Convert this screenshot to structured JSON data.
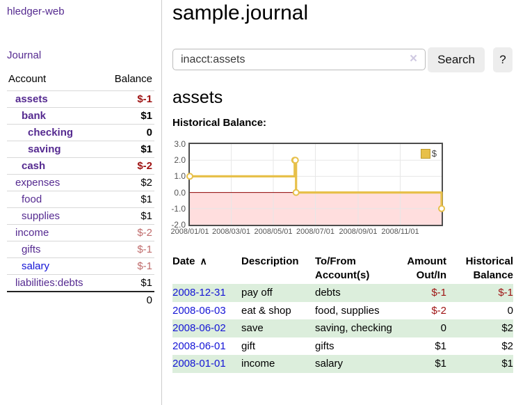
{
  "colors": {
    "link_purple": "#552a90",
    "link_blue": "#1414d6",
    "negative_strong": "#9e1212",
    "negative_faded": "#c06c6c",
    "row_green": "#dceedc",
    "chart_gold": "#e7c04a",
    "chart_gold_dark": "#bd9b2f",
    "chart_negative_fill": "#ffdede",
    "chart_zero_line": "#8b0000",
    "button_gray": "#ededed"
  },
  "app": {
    "title": "hledger-web"
  },
  "sidebar": {
    "journal_link": "Journal",
    "accounts_table": {
      "headers": {
        "account": "Account",
        "balance": "Balance"
      },
      "rows": [
        {
          "name": "assets",
          "balance": "$-1",
          "indent": 0,
          "bold": true,
          "neg": "strong",
          "link": "purple"
        },
        {
          "name": "bank",
          "balance": "$1",
          "indent": 1,
          "bold": true,
          "neg": null,
          "link": "purple"
        },
        {
          "name": "checking",
          "balance": "0",
          "indent": 2,
          "bold": true,
          "neg": null,
          "link": "purple"
        },
        {
          "name": "saving",
          "balance": "$1",
          "indent": 2,
          "bold": true,
          "neg": null,
          "link": "purple"
        },
        {
          "name": "cash",
          "balance": "$-2",
          "indent": 1,
          "bold": true,
          "neg": "strong",
          "link": "purple"
        },
        {
          "name": "expenses",
          "balance": "$2",
          "indent": 0,
          "bold": false,
          "neg": null,
          "link": "purple"
        },
        {
          "name": "food",
          "balance": "$1",
          "indent": 1,
          "bold": false,
          "neg": null,
          "link": "purple"
        },
        {
          "name": "supplies",
          "balance": "$1",
          "indent": 1,
          "bold": false,
          "neg": null,
          "link": "purple"
        },
        {
          "name": "income",
          "balance": "$-2",
          "indent": 0,
          "bold": false,
          "neg": "faded",
          "link": "purple"
        },
        {
          "name": "gifts",
          "balance": "$-1",
          "indent": 1,
          "bold": false,
          "neg": "faded",
          "link": "purple"
        },
        {
          "name": "salary",
          "balance": "$-1",
          "indent": 1,
          "bold": false,
          "neg": "faded",
          "link": "blue"
        },
        {
          "name": "liabilities:debts",
          "balance": "$1",
          "indent": 0,
          "bold": false,
          "neg": null,
          "link": "purple"
        }
      ],
      "total": "0"
    }
  },
  "main": {
    "title": "sample.journal",
    "search": {
      "value": "inacct:assets",
      "clear_icon": "×",
      "search_button": "Search",
      "help_button": "?"
    },
    "account_heading": "assets",
    "chart_title": "Historical Balance:"
  },
  "chart_data": {
    "type": "line",
    "step": true,
    "title": "Historical Balance",
    "x_min": "2008-01-01",
    "x_max": "2008-12-31",
    "ylim": [
      -2,
      3
    ],
    "y_ticks": [
      "3.0",
      "2.0",
      "1.0",
      "0.0",
      "-1.0",
      "-2.0"
    ],
    "x_ticks": [
      "2008/01/01",
      "2008/03/01",
      "2008/05/01",
      "2008/07/01",
      "2008/09/01",
      "2008/11/01"
    ],
    "grid": true,
    "negative_region": true,
    "legend": [
      {
        "label": "$",
        "position": "top-right"
      }
    ],
    "series": [
      {
        "name": "$",
        "points": [
          [
            "2008-01-01",
            1
          ],
          [
            "2008-06-01",
            2
          ],
          [
            "2008-06-02",
            2
          ],
          [
            "2008-06-03",
            0
          ],
          [
            "2008-12-31",
            -1
          ]
        ]
      }
    ]
  },
  "register": {
    "headers": {
      "date": "Date",
      "sort_caret": "∧",
      "description": "Description",
      "to_from": "To/From Account(s)",
      "amount": "Amount Out/In",
      "balance": "Historical Balance"
    },
    "rows": [
      {
        "date": "2008-12-31",
        "description": "pay off",
        "to_from": "debts",
        "amount": "$-1",
        "amount_neg": true,
        "balance": "$-1",
        "balance_neg": true
      },
      {
        "date": "2008-06-03",
        "description": "eat & shop",
        "to_from": "food, supplies",
        "amount": "$-2",
        "amount_neg": true,
        "balance": "0",
        "balance_neg": false
      },
      {
        "date": "2008-06-02",
        "description": "save",
        "to_from": "saving, checking",
        "amount": "0",
        "amount_neg": false,
        "balance": "$2",
        "balance_neg": false
      },
      {
        "date": "2008-06-01",
        "description": "gift",
        "to_from": "gifts",
        "amount": "$1",
        "amount_neg": false,
        "balance": "$2",
        "balance_neg": false
      },
      {
        "date": "2008-01-01",
        "description": "income",
        "to_from": "salary",
        "amount": "$1",
        "amount_neg": false,
        "balance": "$1",
        "balance_neg": false
      }
    ]
  }
}
